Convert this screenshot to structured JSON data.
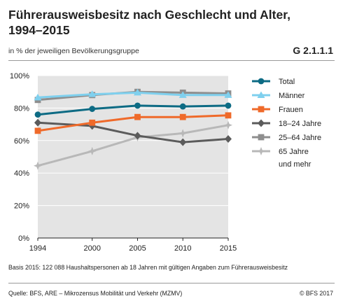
{
  "header": {
    "title": "Führerausweisbesitz nach Geschlecht und Alter, 1994–2015",
    "subtitle": "in % der jeweiligen Bevölkerungsgruppe",
    "code": "G 2.1.1.1"
  },
  "footer": {
    "note": "Basis 2015: 122 088 Haushaltspersonen ab 18 Jahren mit gültigen Angaben zum Führerausweisbesitz",
    "source": "Quelle: BFS, ARE – Mikrozensus Mobilität und Verkehr (MZMV)",
    "copyright": "© BFS 2017"
  },
  "chart_data": {
    "type": "line",
    "title": "Führerausweisbesitz nach Geschlecht und Alter, 1994–2015",
    "subtitle": "in % der jeweiligen Bevölkerungsgruppe",
    "x": [
      1994,
      2000,
      2005,
      2010,
      2015
    ],
    "x_tick_labels": [
      "1994",
      "2000",
      "2005",
      "2010",
      "2015"
    ],
    "ylim": [
      0,
      100
    ],
    "y_ticks": [
      0,
      20,
      40,
      60,
      80,
      100
    ],
    "y_tick_labels": [
      "0%",
      "20%",
      "40%",
      "60%",
      "80%",
      "100%"
    ],
    "grid": true,
    "legend_position": "right",
    "series": [
      {
        "name": "Total",
        "color": "#0d6b84",
        "marker": "circle",
        "values": [
          76,
          79.5,
          81.5,
          81,
          81.5
        ]
      },
      {
        "name": "Männer",
        "color": "#7fd0ee",
        "marker": "triangle",
        "values": [
          86.5,
          88.5,
          89.5,
          88,
          88
        ]
      },
      {
        "name": "Frauen",
        "color": "#ef6a2a",
        "marker": "square",
        "values": [
          66,
          71,
          74.5,
          74.5,
          75.5
        ]
      },
      {
        "name": "18–24 Jahre",
        "color": "#5b5b5b",
        "marker": "diamond",
        "values": [
          71,
          69,
          63,
          59,
          61
        ]
      },
      {
        "name": "25–64 Jahre",
        "color": "#8e8e8e",
        "marker": "square",
        "values": [
          85,
          88,
          90,
          89.5,
          89
        ]
      },
      {
        "name": "65 Jahre\nund mehr",
        "color": "#b8b8b8",
        "marker": "star",
        "values": [
          44.5,
          53.5,
          62,
          64.5,
          69.5
        ]
      }
    ]
  }
}
